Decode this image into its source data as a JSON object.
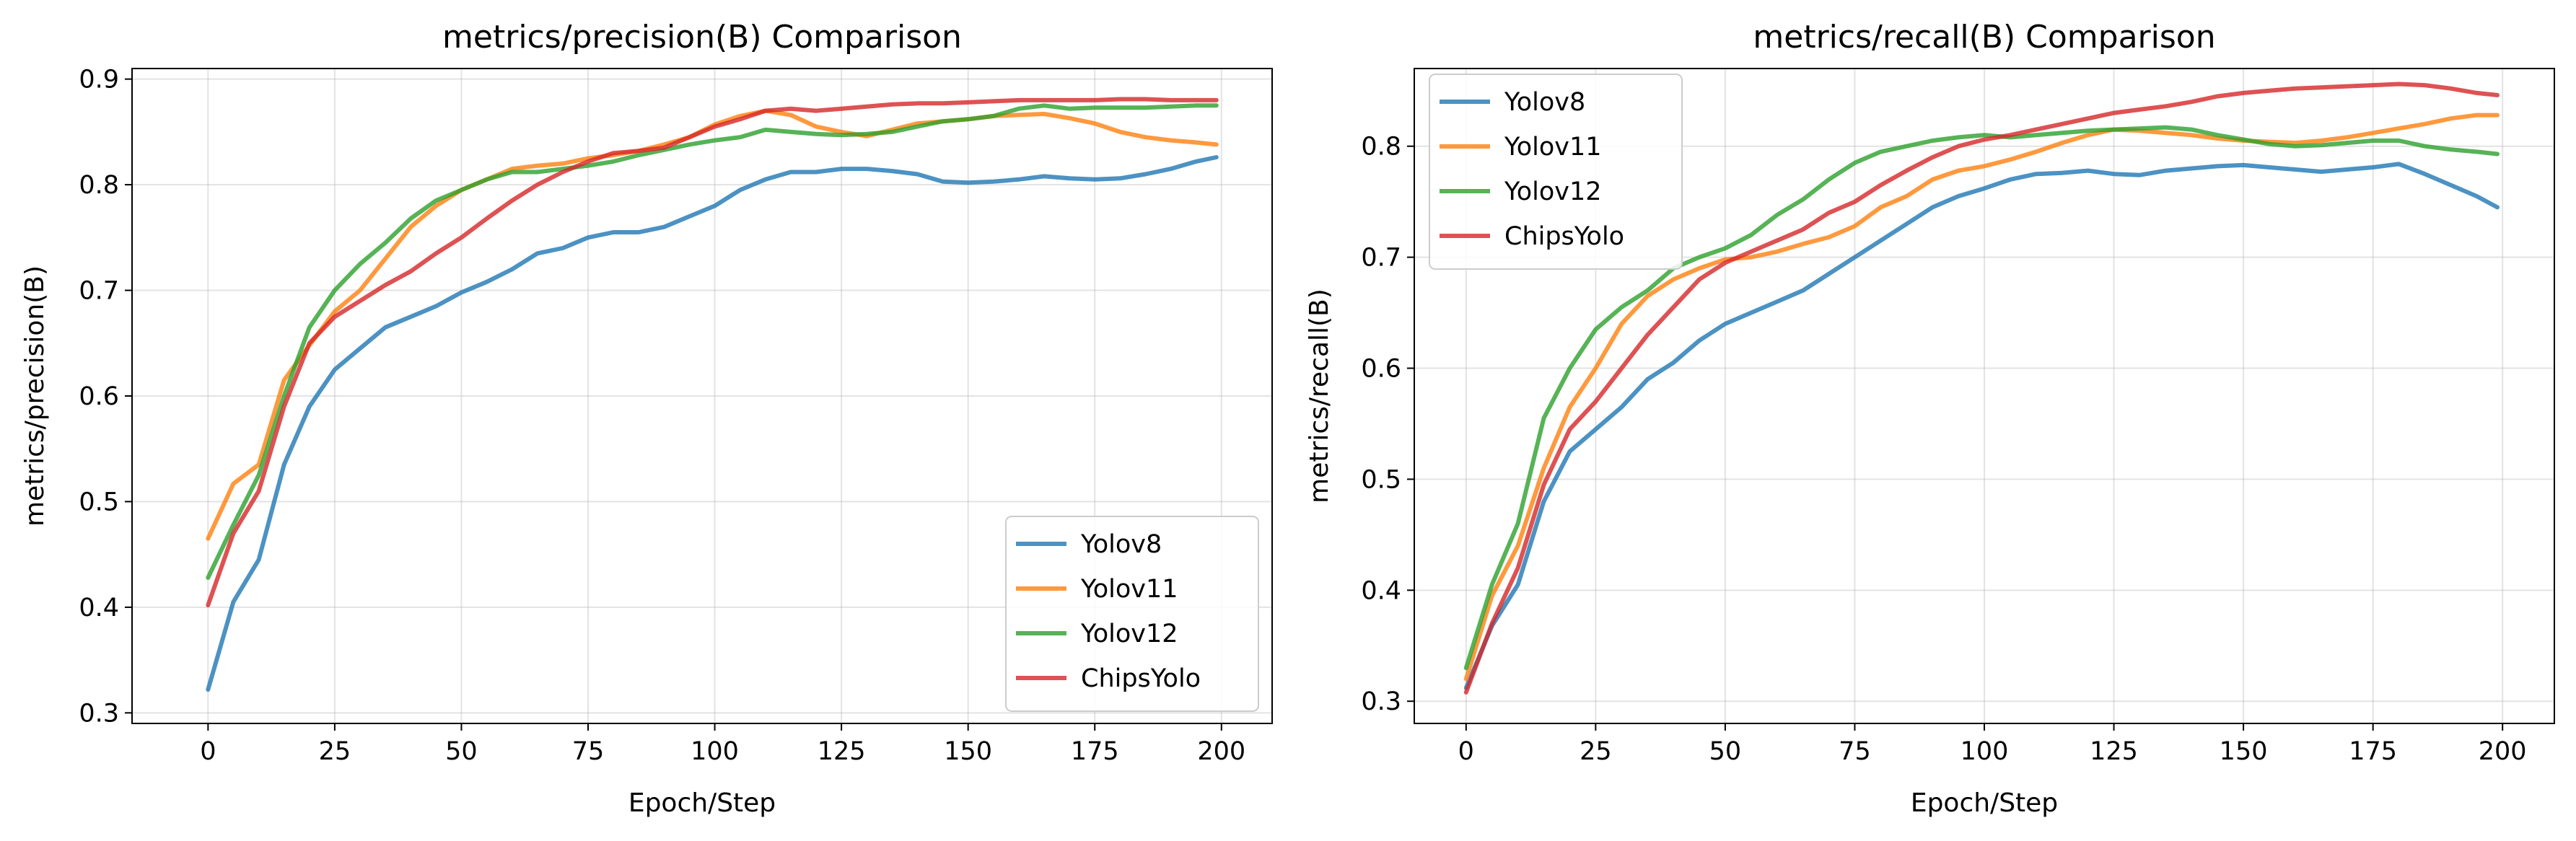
{
  "chart_data": [
    {
      "type": "line",
      "title": "metrics/precision(B) Comparison",
      "xlabel": "Epoch/Step",
      "ylabel": "metrics/precision(B)",
      "xlim": [
        -15,
        210
      ],
      "ylim": [
        0.29,
        0.91
      ],
      "xticks": [
        "0",
        "25",
        "50",
        "75",
        "100",
        "125",
        "150",
        "175",
        "200"
      ],
      "yticks": [
        "0.3",
        "0.4",
        "0.5",
        "0.6",
        "0.7",
        "0.8",
        "0.9"
      ],
      "grid": true,
      "legend_position": "lower-right",
      "x": [
        0,
        5,
        10,
        15,
        20,
        25,
        30,
        35,
        40,
        45,
        50,
        55,
        60,
        65,
        70,
        75,
        80,
        85,
        90,
        95,
        100,
        105,
        110,
        115,
        120,
        125,
        130,
        135,
        140,
        145,
        150,
        155,
        160,
        165,
        170,
        175,
        180,
        185,
        190,
        195,
        199
      ],
      "series": [
        {
          "name": "Yolov8",
          "color": "#1f77b4",
          "values": [
            0.322,
            0.405,
            0.445,
            0.535,
            0.59,
            0.625,
            0.645,
            0.665,
            0.675,
            0.685,
            0.698,
            0.708,
            0.72,
            0.735,
            0.74,
            0.75,
            0.755,
            0.755,
            0.76,
            0.77,
            0.78,
            0.795,
            0.805,
            0.812,
            0.812,
            0.815,
            0.815,
            0.813,
            0.81,
            0.803,
            0.802,
            0.803,
            0.805,
            0.808,
            0.806,
            0.805,
            0.806,
            0.81,
            0.815,
            0.822,
            0.826
          ]
        },
        {
          "name": "Yolov11",
          "color": "#ff7f0e",
          "values": [
            0.465,
            0.517,
            0.535,
            0.615,
            0.648,
            0.68,
            0.7,
            0.73,
            0.76,
            0.78,
            0.795,
            0.805,
            0.815,
            0.818,
            0.82,
            0.825,
            0.828,
            0.832,
            0.838,
            0.845,
            0.857,
            0.865,
            0.87,
            0.866,
            0.855,
            0.85,
            0.846,
            0.852,
            0.858,
            0.86,
            0.862,
            0.865,
            0.866,
            0.867,
            0.863,
            0.858,
            0.85,
            0.845,
            0.842,
            0.84,
            0.838
          ]
        },
        {
          "name": "Yolov12",
          "color": "#2ca02c",
          "values": [
            0.428,
            0.478,
            0.525,
            0.6,
            0.665,
            0.7,
            0.725,
            0.745,
            0.768,
            0.785,
            0.795,
            0.805,
            0.812,
            0.812,
            0.815,
            0.818,
            0.822,
            0.828,
            0.833,
            0.838,
            0.842,
            0.845,
            0.852,
            0.85,
            0.848,
            0.847,
            0.848,
            0.85,
            0.855,
            0.86,
            0.862,
            0.865,
            0.872,
            0.875,
            0.872,
            0.873,
            0.873,
            0.873,
            0.874,
            0.875,
            0.875
          ]
        },
        {
          "name": "ChipsYolo",
          "color": "#d62728",
          "values": [
            0.402,
            0.47,
            0.51,
            0.59,
            0.65,
            0.675,
            0.69,
            0.705,
            0.718,
            0.735,
            0.75,
            0.768,
            0.785,
            0.8,
            0.812,
            0.822,
            0.83,
            0.832,
            0.835,
            0.845,
            0.855,
            0.862,
            0.87,
            0.872,
            0.87,
            0.872,
            0.874,
            0.876,
            0.877,
            0.877,
            0.878,
            0.879,
            0.88,
            0.88,
            0.88,
            0.88,
            0.881,
            0.881,
            0.88,
            0.88,
            0.88
          ]
        }
      ]
    },
    {
      "type": "line",
      "title": "metrics/recall(B) Comparison",
      "xlabel": "Epoch/Step",
      "ylabel": "metrics/recall(B)",
      "xlim": [
        -10,
        210
      ],
      "ylim": [
        0.28,
        0.87
      ],
      "xticks": [
        "0",
        "25",
        "50",
        "75",
        "100",
        "125",
        "150",
        "175",
        "200"
      ],
      "yticks": [
        "0.3",
        "0.4",
        "0.5",
        "0.6",
        "0.7",
        "0.8"
      ],
      "grid": true,
      "legend_position": "upper-left",
      "x": [
        0,
        5,
        10,
        15,
        20,
        25,
        30,
        35,
        40,
        45,
        50,
        55,
        60,
        65,
        70,
        75,
        80,
        85,
        90,
        95,
        100,
        105,
        110,
        115,
        120,
        125,
        130,
        135,
        140,
        145,
        150,
        155,
        160,
        165,
        170,
        175,
        180,
        185,
        190,
        195,
        199
      ],
      "series": [
        {
          "name": "Yolov8",
          "color": "#1f77b4",
          "values": [
            0.312,
            0.368,
            0.405,
            0.48,
            0.525,
            0.545,
            0.565,
            0.59,
            0.605,
            0.625,
            0.64,
            0.65,
            0.66,
            0.67,
            0.685,
            0.7,
            0.715,
            0.73,
            0.745,
            0.755,
            0.762,
            0.77,
            0.775,
            0.776,
            0.778,
            0.775,
            0.774,
            0.778,
            0.78,
            0.782,
            0.783,
            0.781,
            0.779,
            0.777,
            0.779,
            0.781,
            0.784,
            0.775,
            0.765,
            0.755,
            0.745
          ]
        },
        {
          "name": "Yolov11",
          "color": "#ff7f0e",
          "values": [
            0.32,
            0.395,
            0.44,
            0.51,
            0.565,
            0.6,
            0.64,
            0.665,
            0.68,
            0.69,
            0.698,
            0.7,
            0.705,
            0.712,
            0.718,
            0.728,
            0.745,
            0.755,
            0.77,
            0.778,
            0.782,
            0.788,
            0.795,
            0.803,
            0.81,
            0.815,
            0.814,
            0.812,
            0.81,
            0.807,
            0.805,
            0.804,
            0.803,
            0.805,
            0.808,
            0.812,
            0.816,
            0.82,
            0.825,
            0.828,
            0.828
          ]
        },
        {
          "name": "Yolov12",
          "color": "#2ca02c",
          "values": [
            0.33,
            0.405,
            0.46,
            0.555,
            0.6,
            0.635,
            0.655,
            0.67,
            0.69,
            0.7,
            0.708,
            0.72,
            0.738,
            0.752,
            0.77,
            0.785,
            0.795,
            0.8,
            0.805,
            0.808,
            0.81,
            0.808,
            0.81,
            0.812,
            0.814,
            0.815,
            0.816,
            0.817,
            0.815,
            0.81,
            0.806,
            0.802,
            0.8,
            0.801,
            0.803,
            0.805,
            0.805,
            0.8,
            0.797,
            0.795,
            0.793
          ]
        },
        {
          "name": "ChipsYolo",
          "color": "#d62728",
          "values": [
            0.308,
            0.37,
            0.42,
            0.495,
            0.545,
            0.57,
            0.6,
            0.63,
            0.655,
            0.68,
            0.695,
            0.705,
            0.715,
            0.725,
            0.74,
            0.75,
            0.765,
            0.778,
            0.79,
            0.8,
            0.806,
            0.81,
            0.815,
            0.82,
            0.825,
            0.83,
            0.833,
            0.836,
            0.84,
            0.845,
            0.848,
            0.85,
            0.852,
            0.853,
            0.854,
            0.855,
            0.856,
            0.855,
            0.852,
            0.848,
            0.846
          ]
        }
      ]
    }
  ]
}
